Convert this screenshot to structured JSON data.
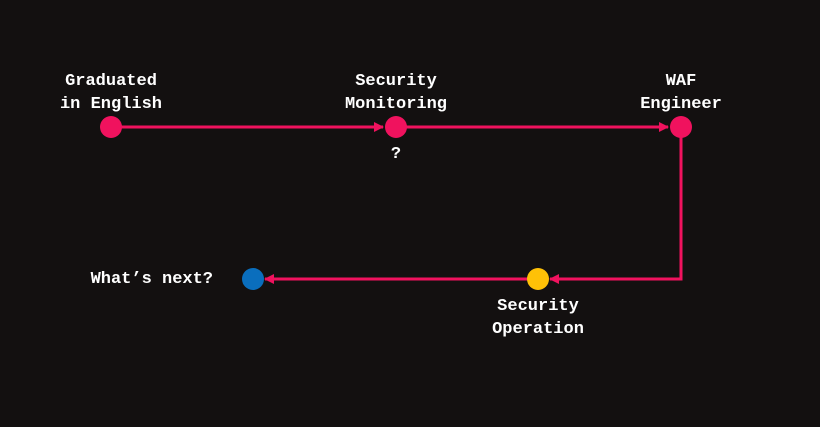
{
  "colors": {
    "background": "#131010",
    "line": "#f0125e",
    "node_pink": "#f0125e",
    "node_yellow": "#ffc107",
    "node_blue": "#0a6ebd",
    "text": "#ffffff"
  },
  "nodes": [
    {
      "id": "graduated",
      "line1": "Graduated",
      "line2": "in English",
      "color": "#f0125e"
    },
    {
      "id": "security-monitoring",
      "line1": "Security",
      "line2": "Monitoring",
      "note": "?",
      "color": "#f0125e"
    },
    {
      "id": "waf-engineer",
      "line1": "WAF",
      "line2": "Engineer",
      "color": "#f0125e"
    },
    {
      "id": "security-operation",
      "line1": "Security",
      "line2": "Operation",
      "color": "#ffc107"
    },
    {
      "id": "whats-next",
      "line1": "What’s next?",
      "color": "#0a6ebd"
    }
  ]
}
